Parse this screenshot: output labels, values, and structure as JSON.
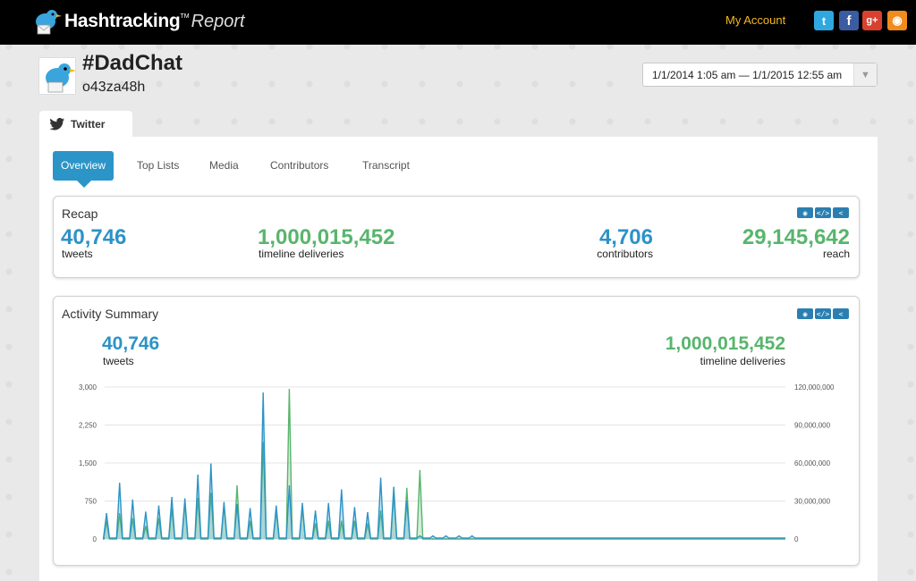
{
  "app": {
    "logo_text": "Hashtracking",
    "logo_tm": "TM",
    "logo_report": "Report",
    "my_account": "My Account"
  },
  "social": [
    {
      "icon": "twitter-icon",
      "glyph": "t"
    },
    {
      "icon": "facebook-icon",
      "glyph": "f"
    },
    {
      "icon": "google-plus-icon",
      "glyph": "g+"
    },
    {
      "icon": "rss-icon",
      "glyph": "◉"
    }
  ],
  "header": {
    "title": "#DadChat",
    "subtitle": "o43za48h",
    "date_range": "1/1/2014 1:05 am — 1/1/2015 12:55 am"
  },
  "platform_tab": "Twitter",
  "tabs": [
    "Overview",
    "Top Lists",
    "Media",
    "Contributors",
    "Transcript"
  ],
  "active_tab": "Overview",
  "recap": {
    "title": "Recap",
    "tweets": "40,746",
    "tweets_label": "tweets",
    "deliveries": "1,000,015,452",
    "deliveries_label": "timeline deliveries",
    "contributors": "4,706",
    "contributors_label": "contributors",
    "reach": "29,145,642",
    "reach_label": "reach"
  },
  "activity": {
    "title": "Activity Summary",
    "tweets": "40,746",
    "tweets_label": "tweets",
    "deliveries": "1,000,015,452",
    "deliveries_label": "timeline deliveries"
  },
  "colors": {
    "tweets": "#2c93c7",
    "deliveries": "#58b56c",
    "accent": "#2b95c8",
    "topbar": "#000000",
    "account_link": "#f5b81e"
  },
  "chart_data": {
    "type": "line",
    "x_range": [
      "1/1/2014",
      "1/1/2015"
    ],
    "left_axis": {
      "ticks": [
        "0",
        "750",
        "1,500",
        "2,250",
        "3,000"
      ],
      "ylim": [
        0,
        3000
      ]
    },
    "right_axis": {
      "ticks": [
        "0",
        "30,000,000",
        "60,000,000",
        "90,000,000",
        "120,000,000"
      ],
      "ylim": [
        0,
        120000000
      ]
    },
    "grid": true,
    "series": [
      {
        "name": "tweets",
        "axis": "left",
        "color": "#2c93c7",
        "spikes_days": [
          1,
          8,
          15,
          22,
          29,
          36,
          43,
          50,
          57,
          64,
          71,
          78,
          85,
          92,
          99,
          106,
          113,
          120,
          127,
          134,
          141,
          148,
          155,
          162,
          169,
          176,
          183,
          190,
          197
        ],
        "spikes_values": [
          500,
          1100,
          770,
          530,
          650,
          820,
          790,
          1260,
          1480,
          720,
          680,
          600,
          2880,
          650,
          1050,
          700,
          550,
          700,
          970,
          620,
          520,
          1200,
          1020,
          750,
          60,
          60,
          60,
          60,
          60
        ],
        "baseline": 20
      },
      {
        "name": "timeline deliveries",
        "axis": "right",
        "color": "#58b56c",
        "spikes_days": [
          1,
          8,
          15,
          22,
          29,
          36,
          43,
          50,
          57,
          64,
          71,
          78,
          85,
          92,
          99,
          106,
          113,
          120,
          127,
          134,
          141,
          148,
          155,
          162,
          169,
          176,
          183,
          190,
          197
        ],
        "spikes_values": [
          14000000,
          20000000,
          16000000,
          10000000,
          16000000,
          24000000,
          28000000,
          32000000,
          36000000,
          26000000,
          42000000,
          14000000,
          76000000,
          22000000,
          118000000,
          25000000,
          12000000,
          14000000,
          14000000,
          14000000,
          12000000,
          22000000,
          36000000,
          40000000,
          54000000,
          0,
          0,
          0,
          0
        ],
        "baseline": 0
      }
    ]
  }
}
